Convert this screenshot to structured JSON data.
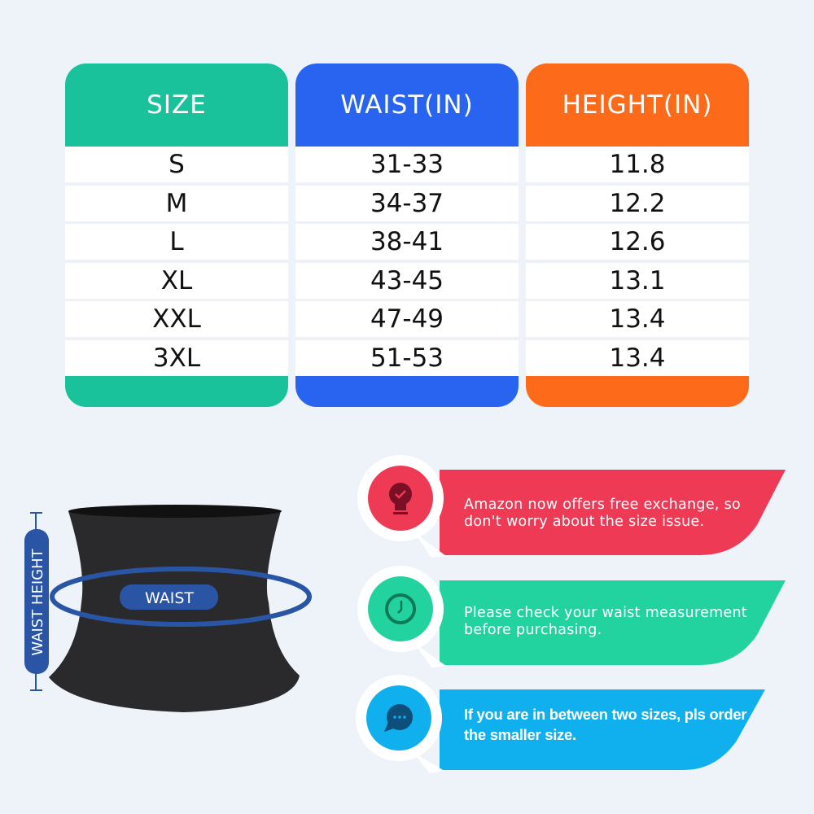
{
  "size_table": {
    "columns": [
      {
        "header": "SIZE",
        "color": "#19c29b",
        "values": [
          "S",
          "M",
          "L",
          "XL",
          "XXL",
          "3XL"
        ]
      },
      {
        "header": "WAIST(IN)",
        "color": "#2864f0",
        "values": [
          "31-33",
          "34-37",
          "38-41",
          "43-45",
          "47-49",
          "51-53"
        ]
      },
      {
        "header": "HEIGHT(IN)",
        "color": "#fd6a19",
        "values": [
          "11.8",
          "12.2",
          "12.6",
          "13.1",
          "13.4",
          "13.4"
        ]
      }
    ]
  },
  "diagram": {
    "waist_label": "WAIST",
    "waist_height_label": "WAIST HEIGHT",
    "accent": "#2a55a5"
  },
  "tips": [
    {
      "text": "Amazon now offers free exchange, so don't worry about the size issue.",
      "icon": "lightbulb-check-icon",
      "color": "#ef3a55"
    },
    {
      "text": "Please check your waist measurement before purchasing.",
      "icon": "clock-icon",
      "color": "#22d3a0"
    },
    {
      "text": "If you are in between two sizes, pls order the smaller size.",
      "icon": "chat-bubble-icon",
      "color": "#10b0ef"
    }
  ]
}
